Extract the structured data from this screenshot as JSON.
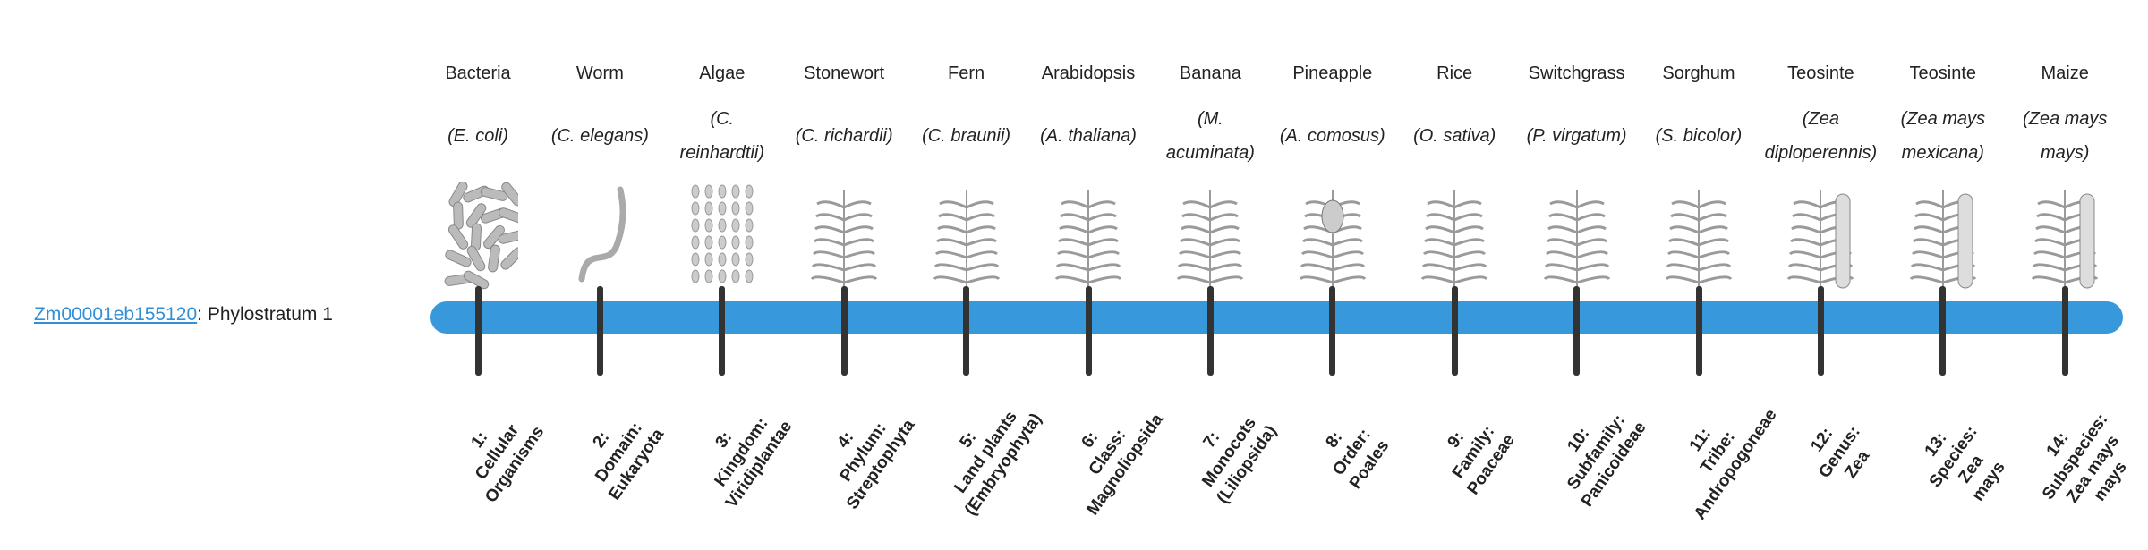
{
  "gene": {
    "id": "Zm00001eb155120",
    "suffix": ": Phylostratum 1"
  },
  "colors": {
    "bar": "#3798db",
    "tick": "#333333",
    "link": "#2f8fd8"
  },
  "strata": [
    {
      "common": "Bacteria",
      "species": "(E. coli)",
      "icon": "bacteria-icon",
      "label": [
        "1:",
        "Cellular",
        "Organisms"
      ]
    },
    {
      "common": "Worm",
      "species": "(C. elegans)",
      "icon": "worm-icon",
      "label": [
        "2:",
        "Domain:",
        "Eukaryota"
      ]
    },
    {
      "common": "Algae",
      "species": "(C. reinhardtii)",
      "icon": "algae-icon",
      "label": [
        "3:",
        "Kingdom:",
        "Viridiplantae"
      ]
    },
    {
      "common": "Stonewort",
      "species": "(C. richardii)",
      "icon": "stonewort-icon",
      "label": [
        "4:",
        "Phylum:",
        "Streptophyta"
      ]
    },
    {
      "common": "Fern",
      "species": "(C. braunii)",
      "icon": "fern-icon",
      "label": [
        "5:",
        "Land plants",
        "(Embryophyta)"
      ]
    },
    {
      "common": "Arabidopsis",
      "species": "(A. thaliana)",
      "icon": "arabidopsis-icon",
      "label": [
        "6:",
        "Class:",
        "Magnoliopsida"
      ]
    },
    {
      "common": "Banana",
      "species": "(M. acuminata)",
      "icon": "banana-icon",
      "label": [
        "7:",
        "Monocots",
        "(Liliopsida)"
      ]
    },
    {
      "common": "Pineapple",
      "species": "(A. comosus)",
      "icon": "pineapple-icon",
      "label": [
        "8:",
        "Order:",
        "Poales"
      ]
    },
    {
      "common": "Rice",
      "species": "(O. sativa)",
      "icon": "rice-icon",
      "label": [
        "9:",
        "Family:",
        "Poaceae"
      ]
    },
    {
      "common": "Switchgrass",
      "species": "(P. virgatum)",
      "icon": "switchgrass-icon",
      "label": [
        "10:",
        "Subfamily:",
        "Panicoideae"
      ]
    },
    {
      "common": "Sorghum",
      "species": "(S. bicolor)",
      "icon": "sorghum-icon",
      "label": [
        "11:",
        "Tribe:",
        "Andropogoneae"
      ]
    },
    {
      "common": "Teosinte",
      "species": "(Zea diploperennis)",
      "icon": "teosinte-icon",
      "label": [
        "12:",
        "Genus:",
        "Zea"
      ]
    },
    {
      "common": "Teosinte",
      "species": "(Zea mays mexicana)",
      "icon": "teosinte-icon",
      "label": [
        "13:",
        "Species:",
        "Zea",
        "mays"
      ]
    },
    {
      "common": "Maize",
      "species": "(Zea mays mays)",
      "icon": "maize-icon",
      "label": [
        "14:",
        "Subspecies:",
        "Zea mays",
        "mays"
      ]
    }
  ]
}
